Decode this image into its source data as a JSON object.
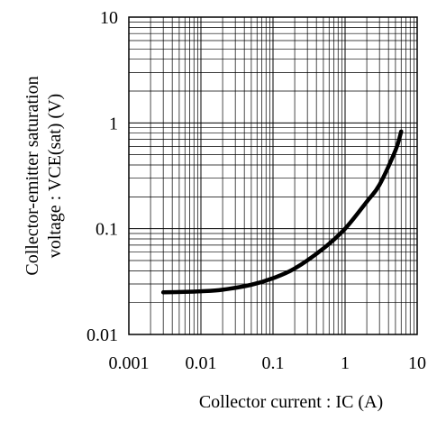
{
  "chart_data": {
    "type": "line",
    "title": "",
    "xlabel": "Collector current : IC (A)",
    "ylabel_line1": "Collector-emitter saturation",
    "ylabel_line2": "voltage : VCE(sat) (V)",
    "xscale": "log",
    "yscale": "log",
    "xlim": [
      0.001,
      10
    ],
    "ylim": [
      0.01,
      10
    ],
    "grid": "on (major and minor)",
    "legend": "none",
    "x_tick_labels": [
      "0.001",
      "0.01",
      "0.1",
      "1",
      "10"
    ],
    "y_tick_labels": [
      "0.01",
      "0.1",
      "1",
      "10"
    ],
    "x_ticks": [
      0.001,
      0.01,
      0.1,
      1,
      10
    ],
    "y_ticks": [
      0.01,
      0.1,
      1,
      10
    ],
    "series": [
      {
        "x": [
          0.003,
          0.005,
          0.01,
          0.02,
          0.05,
          0.1,
          0.2,
          0.5,
          1,
          2,
          3,
          5,
          6
        ],
        "y": [
          0.025,
          0.0252,
          0.0256,
          0.0265,
          0.0295,
          0.034,
          0.042,
          0.065,
          0.1,
          0.18,
          0.26,
          0.55,
          0.83
        ]
      }
    ]
  }
}
